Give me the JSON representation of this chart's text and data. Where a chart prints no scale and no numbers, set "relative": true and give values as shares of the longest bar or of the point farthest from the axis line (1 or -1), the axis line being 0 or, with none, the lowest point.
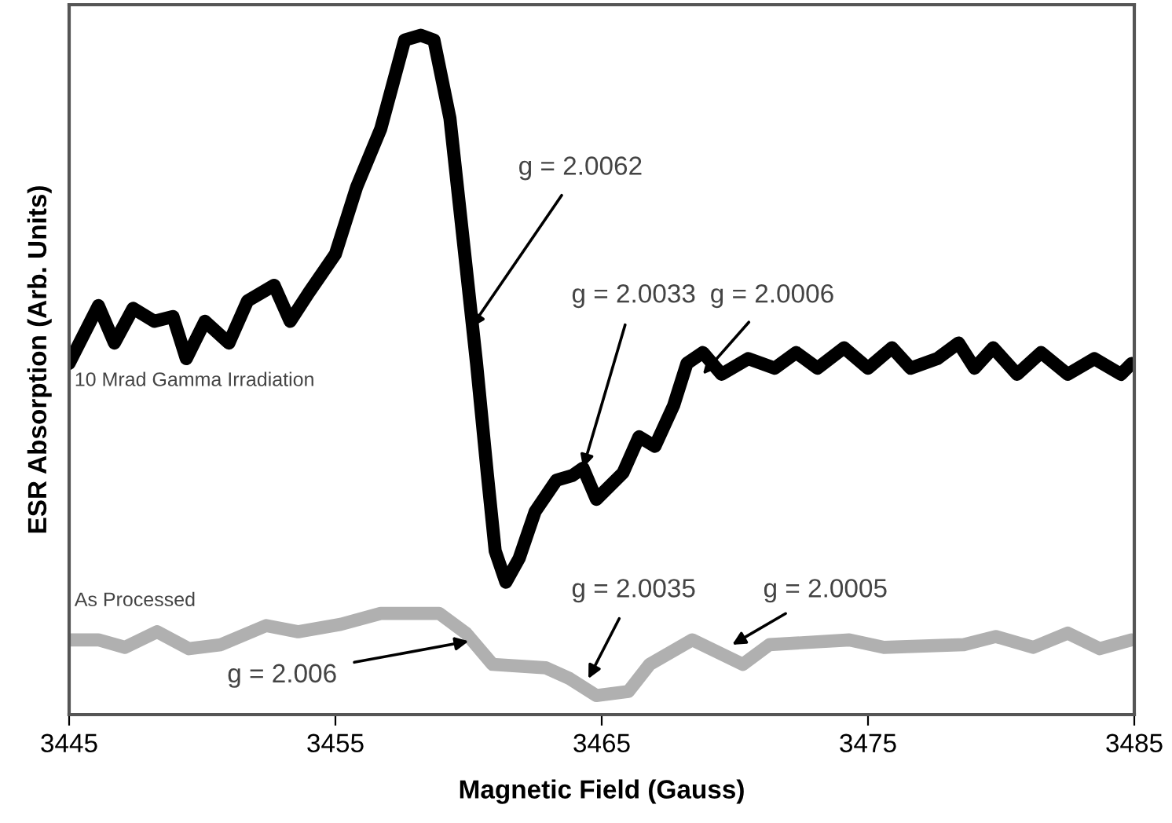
{
  "chart_data": {
    "type": "line",
    "relative": true,
    "xlabel": "Magnetic Field (Gauss)",
    "ylabel": "ESR Absorption (Arb. Units)",
    "xlim": [
      3445,
      3485
    ],
    "xticks": [
      3445,
      3455,
      3465,
      3475,
      3485
    ],
    "grid": false,
    "legend": false,
    "marker": "none",
    "line_style": "solid",
    "series": [
      {
        "name": "10 Mrad Gamma Irradiation",
        "color": "#000000",
        "x": [
          3445,
          3446.1,
          3446.7,
          3447.4,
          3448.2,
          3448.9,
          3449.4,
          3450.1,
          3451.0,
          3451.7,
          3452.7,
          3453.3,
          3454.0,
          3455.0,
          3455.8,
          3456.7,
          3457.6,
          3458.2,
          3458.7,
          3459.3,
          3459.9,
          3460.3,
          3460.7,
          3461.0,
          3461.4,
          3461.9,
          3462.5,
          3463.3,
          3463.9,
          3464.3,
          3464.8,
          3465.8,
          3466.4,
          3467.0,
          3467.7,
          3468.2,
          3468.8,
          3469.5,
          3470.5,
          3471.5,
          3472.3,
          3473.1,
          3474.1,
          3475.0,
          3475.9,
          3476.6,
          3477.6,
          3478.4,
          3479.0,
          3479.7,
          3480.6,
          3481.5,
          3482.5,
          3483.5,
          3484.5,
          3484.9
        ],
        "values": [
          0.517,
          0.602,
          0.547,
          0.598,
          0.579,
          0.586,
          0.524,
          0.579,
          0.547,
          0.609,
          0.632,
          0.579,
          0.621,
          0.678,
          0.777,
          0.862,
          0.993,
          1,
          0.993,
          0.878,
          0.662,
          0.517,
          0.356,
          0.241,
          0.195,
          0.23,
          0.299,
          0.345,
          0.352,
          0.363,
          0.317,
          0.356,
          0.409,
          0.395,
          0.455,
          0.517,
          0.533,
          0.501,
          0.524,
          0.51,
          0.533,
          0.51,
          0.54,
          0.51,
          0.54,
          0.51,
          0.524,
          0.547,
          0.51,
          0.54,
          0.501,
          0.533,
          0.501,
          0.524,
          0.501,
          0.517
        ]
      },
      {
        "name": "As Processed",
        "color": "#b0b0b0",
        "x": [
          3445,
          3446.1,
          3447.1,
          3448.3,
          3449.5,
          3450.7,
          3452.4,
          3453.6,
          3455.2,
          3456.7,
          3458.9,
          3459.9,
          3460.9,
          3462.9,
          3463.8,
          3464.8,
          3466.0,
          3466.8,
          3468.4,
          3470.3,
          3471.3,
          3474.3,
          3475.6,
          3478.6,
          3479.8,
          3481.2,
          3482.5,
          3483.7,
          3484.9
        ],
        "values": [
          0.11,
          0.11,
          0.099,
          0.122,
          0.097,
          0.103,
          0.131,
          0.122,
          0.133,
          0.149,
          0.149,
          0.12,
          0.074,
          0.069,
          0.053,
          0.028,
          0.034,
          0.074,
          0.11,
          0.074,
          0.103,
          0.11,
          0.099,
          0.103,
          0.115,
          0.099,
          0.12,
          0.097,
          0.11
        ]
      }
    ],
    "annotations": [
      {
        "text": "g = 2.0062",
        "x": 3460.1,
        "y": 0.57
      },
      {
        "text": "g = 2.0033",
        "x": 3464.3,
        "y": 0.363
      },
      {
        "text": "g = 2.0006",
        "x": 3468.8,
        "y": 0.501
      },
      {
        "text": "g = 2.006",
        "x": 3460.0,
        "y": 0.108
      },
      {
        "text": "g = 2.0035",
        "x": 3464.5,
        "y": 0.053
      },
      {
        "text": "g = 2.0005",
        "x": 3469.9,
        "y": 0.103
      }
    ]
  }
}
